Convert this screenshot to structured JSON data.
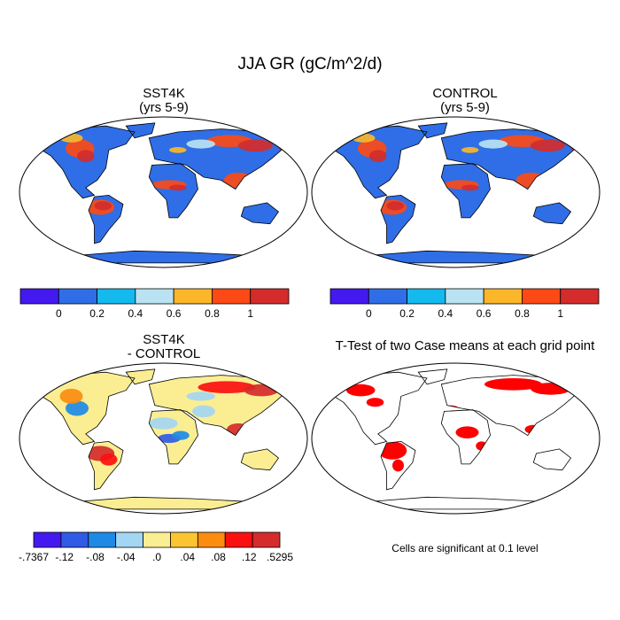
{
  "figure": {
    "title": "JJA GR (gC/m^2/d)",
    "note": "Cells are significant at 0.1 level"
  },
  "panels": [
    {
      "id": "sst4k",
      "title_line1": "SST4K",
      "title_line2": "(yrs 5-9)"
    },
    {
      "id": "control",
      "title_line1": "CONTROL",
      "title_line2": "(yrs 5-9)"
    },
    {
      "id": "diff",
      "title_line1": "SST4K",
      "title_line2": "- CONTROL"
    },
    {
      "id": "ttest",
      "title_line1": "T-Test of two Case means at each grid point",
      "title_line2": ""
    }
  ],
  "colorbars": {
    "absolute": {
      "colors": [
        "#4419f0",
        "#2f6ee6",
        "#14b9ee",
        "#b9e3f3",
        "#fbb62a",
        "#fc4a16",
        "#d42b2b"
      ],
      "labels": [
        "0",
        "0.2",
        "0.4",
        "0.6",
        "0.8",
        "1"
      ]
    },
    "difference": {
      "colors": [
        "#4419f0",
        "#2f5be6",
        "#1e8ae6",
        "#a3d6f2",
        "#fbee92",
        "#fbc532",
        "#fb8c10",
        "#fa1010",
        "#d42b2b"
      ],
      "labels": [
        "-.7367",
        "-.12",
        "-.08",
        "-.04",
        ".0",
        ".04",
        ".08",
        ".12",
        ".5295"
      ]
    }
  },
  "map_colors": {
    "ocean": "#ffffff",
    "coast": "#000000",
    "land_absolute": "#2f6ee6",
    "land_difference": "#fbee92",
    "significant": "#ff0000"
  },
  "chart_data": [
    {
      "type": "heatmap",
      "title": "SST4K",
      "subtitle": "(yrs 5-9)",
      "projection": "Robinson",
      "units": "gC/m^2/d"
    },
    {
      "type": "heatmap",
      "title": "CONTROL",
      "subtitle": "(yrs 5-9)",
      "projection": "Robinson",
      "units": "gC/m^2/d"
    },
    {
      "type": "heatmap",
      "title": "SST4K",
      "subtitle": "- CONTROL",
      "projection": "Robinson",
      "units": "gC/m^2/d"
    },
    {
      "type": "heatmap",
      "title": "T-Test of two Case means at each grid point",
      "projection": "Robinson",
      "significance_level": 0.1
    }
  ]
}
